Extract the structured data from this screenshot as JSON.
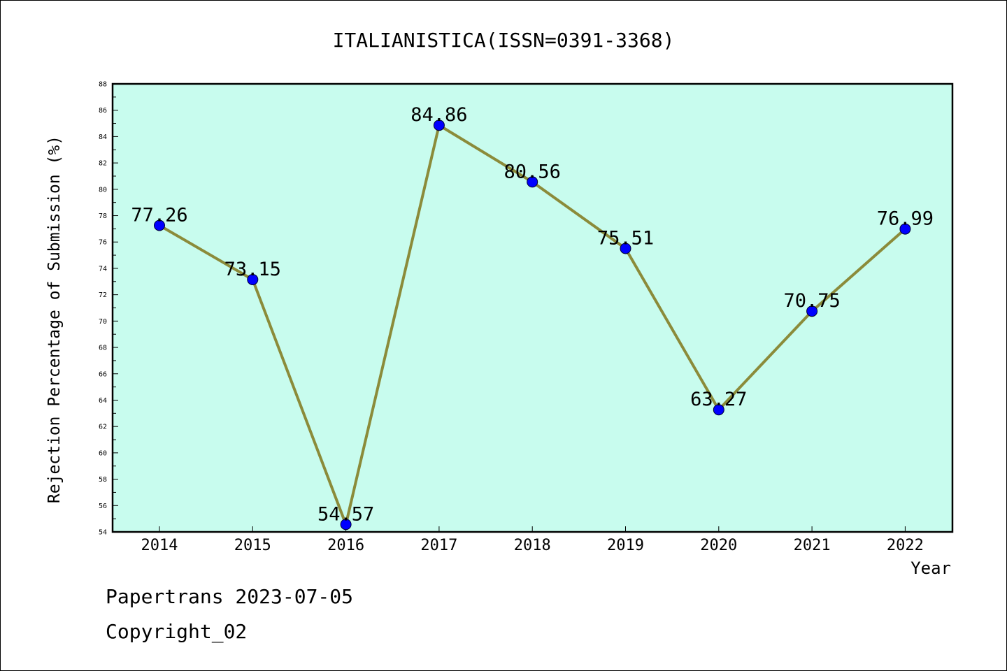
{
  "chart_data": {
    "type": "line",
    "title": "ITALIANISTICA(ISSN=0391-3368)",
    "xlabel": "Year",
    "ylabel": "Rejection Percentage of Submission (%)",
    "categories": [
      "2014",
      "2015",
      "2016",
      "2017",
      "2018",
      "2019",
      "2020",
      "2021",
      "2022"
    ],
    "series": [
      {
        "values": [
          77.26,
          73.15,
          54.57,
          84.86,
          80.56,
          75.51,
          63.27,
          70.75,
          76.99
        ],
        "data_labels": [
          "77.26",
          "73.15",
          "54.57",
          "84.86",
          "80.56",
          "75.51",
          "63.27",
          "70.75",
          "76.99"
        ]
      }
    ],
    "ylim": [
      54,
      88
    ],
    "yticks": [
      54,
      56,
      58,
      60,
      62,
      64,
      66,
      68,
      70,
      72,
      74,
      76,
      78,
      80,
      82,
      84,
      86,
      88
    ],
    "grid": false,
    "colors": {
      "plot_background": "#c8fcee",
      "line": "#8b8b3a",
      "marker": "#0000ff",
      "axis": "#000000"
    }
  },
  "footer": {
    "line1": "Papertrans 2023-07-05",
    "line2": "Copyright_02"
  }
}
